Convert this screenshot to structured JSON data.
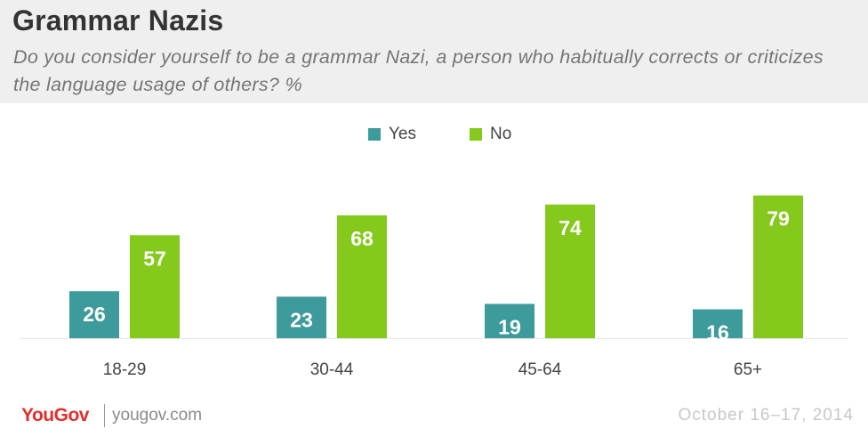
{
  "header": {
    "title": "Grammar Nazis",
    "subtitle": "Do you consider yourself to be a grammar Nazi, a person who habitually corrects or criticizes the language usage of others? %"
  },
  "chart_data": {
    "type": "bar",
    "title": "Grammar Nazis",
    "subtitle": "Do you consider yourself to be a grammar Nazi, a person who habitually corrects or criticizes the language usage of others? %",
    "categories": [
      "18-29",
      "30-44",
      "45-64",
      "65+"
    ],
    "series": [
      {
        "name": "Yes",
        "color": "#3e9b9c",
        "values": [
          26,
          23,
          19,
          16
        ]
      },
      {
        "name": "No",
        "color": "#84c91b",
        "values": [
          57,
          68,
          74,
          79
        ]
      }
    ],
    "ylim": [
      0,
      80
    ],
    "grid": false,
    "legend_position": "top-center",
    "data_labels": true
  },
  "footer": {
    "logo": "YouGov",
    "url": "yougov.com",
    "date": "October 16–17, 2014"
  }
}
